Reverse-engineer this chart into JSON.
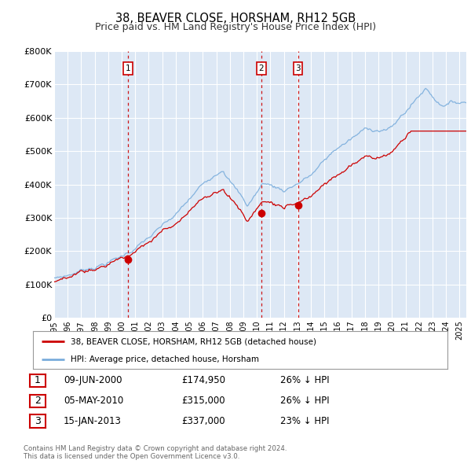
{
  "title": "38, BEAVER CLOSE, HORSHAM, RH12 5GB",
  "subtitle": "Price paid vs. HM Land Registry's House Price Index (HPI)",
  "title_fontsize": 10.5,
  "subtitle_fontsize": 9,
  "plot_bg_color": "#dde8f5",
  "grid_color": "#ffffff",
  "ylim": [
    0,
    800000
  ],
  "yticks": [
    0,
    100000,
    200000,
    300000,
    400000,
    500000,
    600000,
    700000,
    800000
  ],
  "ytick_labels": [
    "£0",
    "£100K",
    "£200K",
    "£300K",
    "£400K",
    "£500K",
    "£600K",
    "£700K",
    "£800K"
  ],
  "hpi_color": "#7aaddc",
  "price_color": "#cc0000",
  "sale_marker_color": "#cc0000",
  "vline_color": "#cc0000",
  "legend_label_price": "38, BEAVER CLOSE, HORSHAM, RH12 5GB (detached house)",
  "legend_label_hpi": "HPI: Average price, detached house, Horsham",
  "sale1_date_x": 2000.44,
  "sale1_price": 174950,
  "sale1_label": "1",
  "sale1_date_str": "09-JUN-2000",
  "sale1_price_str": "£174,950",
  "sale1_hpi_str": "26% ↓ HPI",
  "sale2_date_x": 2010.34,
  "sale2_price": 315000,
  "sale2_label": "2",
  "sale2_date_str": "05-MAY-2010",
  "sale2_price_str": "£315,000",
  "sale2_hpi_str": "26% ↓ HPI",
  "sale3_date_x": 2013.04,
  "sale3_price": 337000,
  "sale3_label": "3",
  "sale3_date_str": "15-JAN-2013",
  "sale3_price_str": "£337,000",
  "sale3_hpi_str": "23% ↓ HPI",
  "footer_text": "Contains HM Land Registry data © Crown copyright and database right 2024.\nThis data is licensed under the Open Government Licence v3.0.",
  "xmin": 1995.0,
  "xmax": 2025.5
}
